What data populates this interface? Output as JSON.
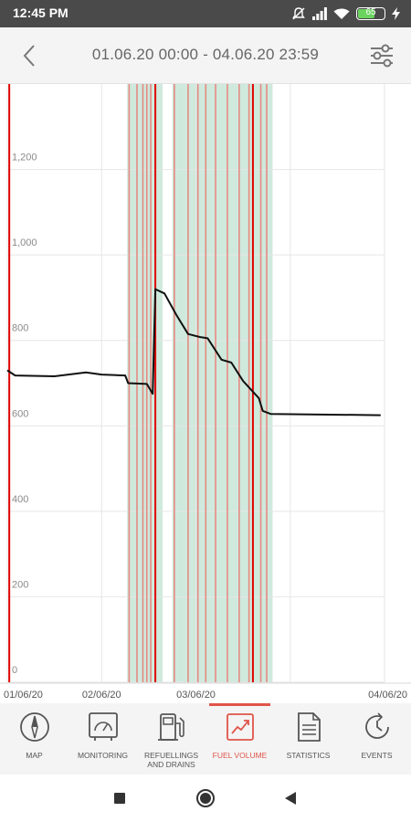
{
  "status_bar": {
    "time": "12:45 PM",
    "battery_percent": "65",
    "battery_level": 0.65,
    "icons": [
      "mute-icon",
      "signal-icon",
      "wifi-icon",
      "battery-icon",
      "charging-icon"
    ]
  },
  "header": {
    "date_range": "01.06.20 00:00 - 04.06.20 23:59",
    "back_icon": "chevron-left-icon",
    "filter_icon": "sliders-icon"
  },
  "chart_data": {
    "type": "line",
    "title": "",
    "xlabel": "",
    "ylabel": "",
    "ylim": [
      0,
      1400
    ],
    "x_range": [
      "2020-06-01 00:00",
      "2020-06-04 23:59"
    ],
    "y_ticks": [
      0,
      200,
      400,
      600,
      800,
      1000,
      1200
    ],
    "y_tick_labels": [
      "0",
      "200",
      "400",
      "600",
      "800",
      "1,000",
      "1,200"
    ],
    "x_tick_labels": [
      "01/06/20",
      "02/06/20",
      "03/06/20",
      "04/06/20"
    ],
    "grid": true,
    "colors": {
      "line": "#111111",
      "event_band": "#cfe9dd",
      "event_line": "#e58a82",
      "refuel_line": "#e00000",
      "grid": "#e6e6e6"
    },
    "series": [
      {
        "values": [
          [
            "2020-06-01 00:00",
            730
          ],
          [
            "2020-06-01 02:00",
            718
          ],
          [
            "2020-06-01 12:00",
            716
          ],
          [
            "2020-06-01 20:00",
            725
          ],
          [
            "2020-06-02 00:00",
            720
          ],
          [
            "2020-06-02 06:00",
            718
          ],
          [
            "2020-06-02 06:45",
            700
          ],
          [
            "2020-06-02 11:30",
            698
          ],
          [
            "2020-06-02 13:00",
            675
          ],
          [
            "2020-06-02 13:40",
            920
          ],
          [
            "2020-06-02 16:00",
            910
          ],
          [
            "2020-06-02 19:00",
            860
          ],
          [
            "2020-06-02 22:00",
            815
          ],
          [
            "2020-06-03 01:00",
            808
          ],
          [
            "2020-06-03 03:00",
            805
          ],
          [
            "2020-06-03 06:30",
            755
          ],
          [
            "2020-06-03 09:00",
            748
          ],
          [
            "2020-06-03 12:00",
            705
          ],
          [
            "2020-06-03 16:00",
            665
          ],
          [
            "2020-06-03 17:00",
            635
          ],
          [
            "2020-06-03 19:00",
            628
          ],
          [
            "2020-06-04 05:00",
            627
          ],
          [
            "2020-06-04 23:00",
            625
          ]
        ]
      }
    ],
    "event_bands": [
      [
        "2020-06-02 06:30",
        "2020-06-02 15:30"
      ],
      [
        "2020-06-02 18:00",
        "2020-06-03 19:30"
      ]
    ],
    "refuel_markers": [
      "2020-06-01 00:30",
      "2020-06-02 13:40",
      "2020-06-03 14:30"
    ],
    "event_markers": [
      "2020-06-02 07:00",
      "2020-06-02 09:00",
      "2020-06-02 10:30",
      "2020-06-02 11:30",
      "2020-06-02 12:30",
      "2020-06-02 18:30",
      "2020-06-02 22:00",
      "2020-06-03 00:30",
      "2020-06-03 02:30",
      "2020-06-03 05:00",
      "2020-06-03 08:00",
      "2020-06-03 11:00",
      "2020-06-03 13:30",
      "2020-06-03 16:30",
      "2020-06-03 18:00"
    ]
  },
  "bottom_nav": {
    "items": [
      {
        "label": "MAP",
        "icon": "compass-icon"
      },
      {
        "label": "MONITORING",
        "icon": "gauge-icon"
      },
      {
        "label": "REFUELLINGS AND DRAINS",
        "icon": "fuel-pump-icon"
      },
      {
        "label": "FUEL VOLUME",
        "icon": "trend-chart-icon"
      },
      {
        "label": "STATISTICS",
        "icon": "document-icon"
      },
      {
        "label": "EVENTS",
        "icon": "clock-icon"
      }
    ],
    "active_index": 3
  },
  "system_nav": {
    "icons": [
      "recents-square-icon",
      "home-circle-icon",
      "back-triangle-icon"
    ]
  }
}
